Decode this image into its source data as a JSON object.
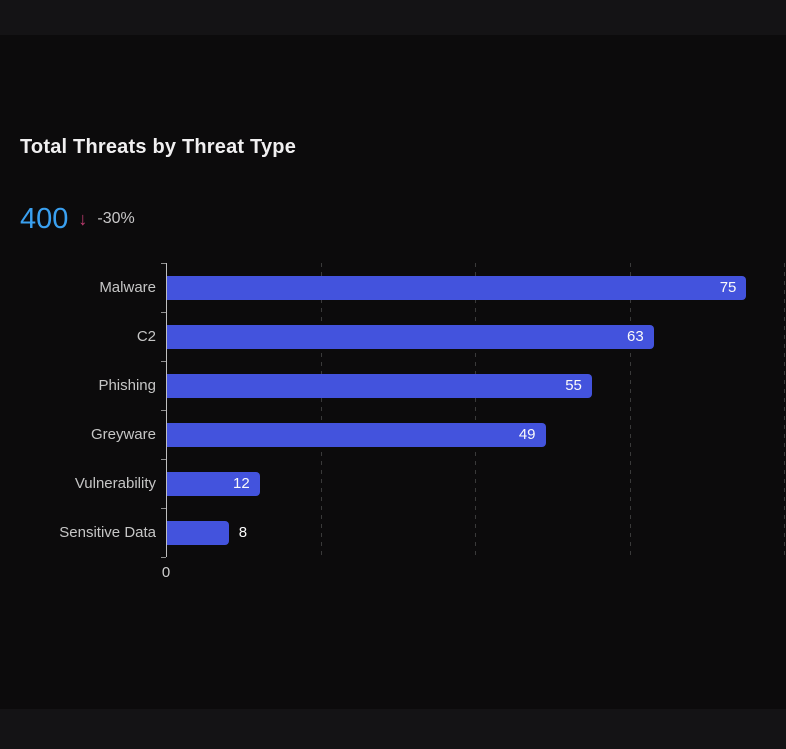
{
  "header": {
    "title": "Total Threats by Threat Type"
  },
  "kpi": {
    "value": "400",
    "trend": "-30%",
    "trend_direction": "down",
    "trend_arrow_glyph": "↓",
    "value_color": "#3aa0f0",
    "trend_arrow_color": "#c43d72",
    "trend_text_color": "#c8c7c8"
  },
  "chart_data": {
    "type": "bar",
    "orientation": "horizontal",
    "title": "Total Threats by Threat Type",
    "categories": [
      "Malware",
      "C2",
      "Phishing",
      "Greyware",
      "Vulnerability",
      "Sensitive Data"
    ],
    "values": [
      75,
      63,
      55,
      49,
      12,
      8
    ],
    "value_label_positions": [
      "inside",
      "inside",
      "inside",
      "inside",
      "inside",
      "outside"
    ],
    "xlabel": "",
    "ylabel": "",
    "xlim": [
      0,
      80
    ],
    "gridline_values": [
      20,
      40,
      60,
      80
    ],
    "grid_style": "dashed-vertical",
    "xaxis_tick_labels": [
      "0"
    ],
    "zero_tick_label": "0",
    "legend_position": "none",
    "bar_color": "#4353dd",
    "bar_label_color": "#fafafa",
    "category_label_color": "#c6c6c6",
    "gridline_color": "#3a3a3a",
    "axis_line_color": "#bfbfbf",
    "background_color": "#0c0b0c"
  }
}
